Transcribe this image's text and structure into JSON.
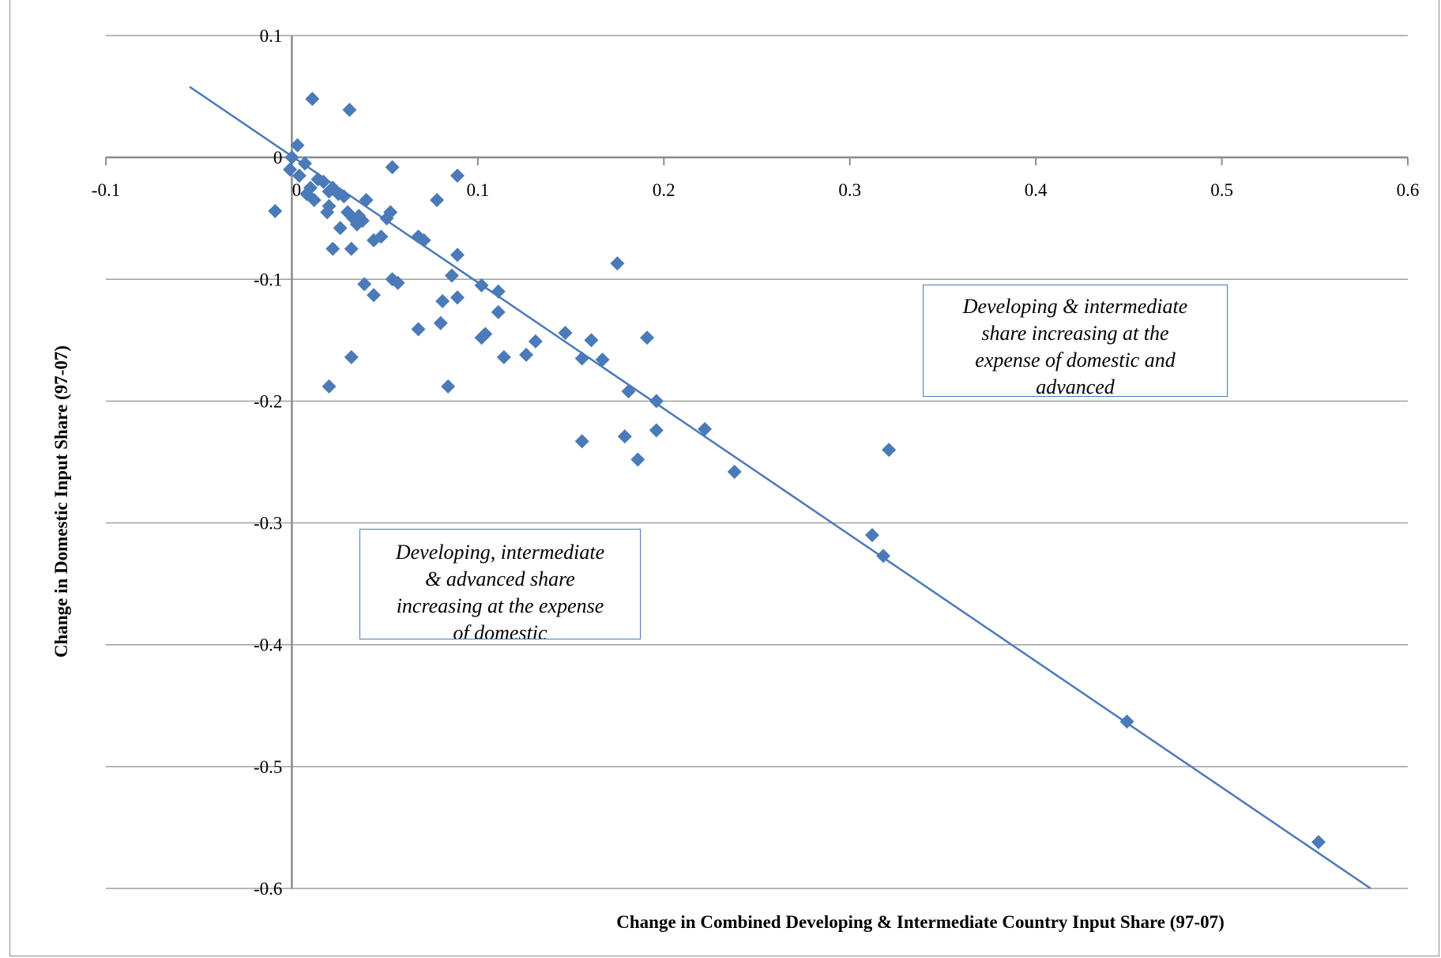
{
  "chart_data": {
    "type": "scatter",
    "title": "",
    "xlabel": "Change in Combined Developing  & Intermediate Country Input Share (97-07)",
    "ylabel": "Change in Domestic Input Share (97-07)",
    "xlim": [
      -0.1,
      0.6
    ],
    "ylim": [
      -0.6,
      0.1
    ],
    "x_ticks": [
      "-0.1",
      "0",
      "0.1",
      "0.2",
      "0.3",
      "0.4",
      "0.5",
      "0.6"
    ],
    "y_ticks": [
      "0.1",
      "0",
      "-0.1",
      "-0.2",
      "-0.3",
      "-0.4",
      "-0.5",
      "-0.6"
    ],
    "grid": "horizontal",
    "marker_color": "#4a7ab8",
    "trendline": {
      "x": [
        -0.055,
        0.58
      ],
      "y": [
        0.058,
        -0.6
      ]
    },
    "points": [
      [
        0.0,
        0.0
      ],
      [
        0.003,
        0.01
      ],
      [
        -0.001,
        -0.01
      ],
      [
        0.004,
        -0.015
      ],
      [
        0.007,
        -0.005
      ],
      [
        0.01,
        -0.025
      ],
      [
        0.008,
        -0.03
      ],
      [
        0.012,
        -0.035
      ],
      [
        0.014,
        -0.018
      ],
      [
        0.017,
        -0.02
      ],
      [
        0.02,
        -0.028
      ],
      [
        0.02,
        -0.04
      ],
      [
        0.019,
        -0.045
      ],
      [
        0.022,
        -0.025
      ],
      [
        0.025,
        -0.03
      ],
      [
        0.028,
        -0.032
      ],
      [
        0.011,
        0.048
      ],
      [
        0.031,
        0.039
      ],
      [
        -0.009,
        -0.044
      ],
      [
        0.054,
        -0.008
      ],
      [
        0.089,
        -0.015
      ],
      [
        0.022,
        -0.075
      ],
      [
        0.026,
        -0.058
      ],
      [
        0.03,
        -0.045
      ],
      [
        0.033,
        -0.05
      ],
      [
        0.035,
        -0.055
      ],
      [
        0.036,
        -0.048
      ],
      [
        0.038,
        -0.052
      ],
      [
        0.04,
        -0.035
      ],
      [
        0.032,
        -0.075
      ],
      [
        0.044,
        -0.068
      ],
      [
        0.048,
        -0.065
      ],
      [
        0.051,
        -0.05
      ],
      [
        0.053,
        -0.045
      ],
      [
        0.068,
        -0.065
      ],
      [
        0.071,
        -0.068
      ],
      [
        0.078,
        -0.035
      ],
      [
        0.039,
        -0.104
      ],
      [
        0.044,
        -0.113
      ],
      [
        0.054,
        -0.1
      ],
      [
        0.057,
        -0.103
      ],
      [
        0.089,
        -0.08
      ],
      [
        0.086,
        -0.097
      ],
      [
        0.081,
        -0.118
      ],
      [
        0.089,
        -0.115
      ],
      [
        0.068,
        -0.141
      ],
      [
        0.08,
        -0.136
      ],
      [
        0.02,
        -0.188
      ],
      [
        0.032,
        -0.164
      ],
      [
        0.084,
        -0.188
      ],
      [
        0.102,
        -0.105
      ],
      [
        0.111,
        -0.11
      ],
      [
        0.111,
        -0.127
      ],
      [
        0.104,
        -0.145
      ],
      [
        0.102,
        -0.148
      ],
      [
        0.114,
        -0.164
      ],
      [
        0.131,
        -0.151
      ],
      [
        0.126,
        -0.162
      ],
      [
        0.147,
        -0.144
      ],
      [
        0.161,
        -0.15
      ],
      [
        0.156,
        -0.165
      ],
      [
        0.167,
        -0.166
      ],
      [
        0.175,
        -0.087
      ],
      [
        0.181,
        -0.192
      ],
      [
        0.191,
        -0.148
      ],
      [
        0.196,
        -0.2
      ],
      [
        0.196,
        -0.224
      ],
      [
        0.179,
        -0.229
      ],
      [
        0.156,
        -0.233
      ],
      [
        0.186,
        -0.248
      ],
      [
        0.222,
        -0.223
      ],
      [
        0.238,
        -0.258
      ],
      [
        0.321,
        -0.24
      ],
      [
        0.312,
        -0.31
      ],
      [
        0.318,
        -0.327
      ],
      [
        0.449,
        -0.463
      ],
      [
        0.552,
        -0.562
      ]
    ],
    "annotations": [
      {
        "lines": [
          "Developing & intermediate",
          "share increasing at the",
          "expense of domestic and",
          "advanced"
        ]
      },
      {
        "lines": [
          "Developing, intermediate",
          "& advanced share",
          "increasing at the expense",
          "of domestic"
        ]
      }
    ]
  }
}
